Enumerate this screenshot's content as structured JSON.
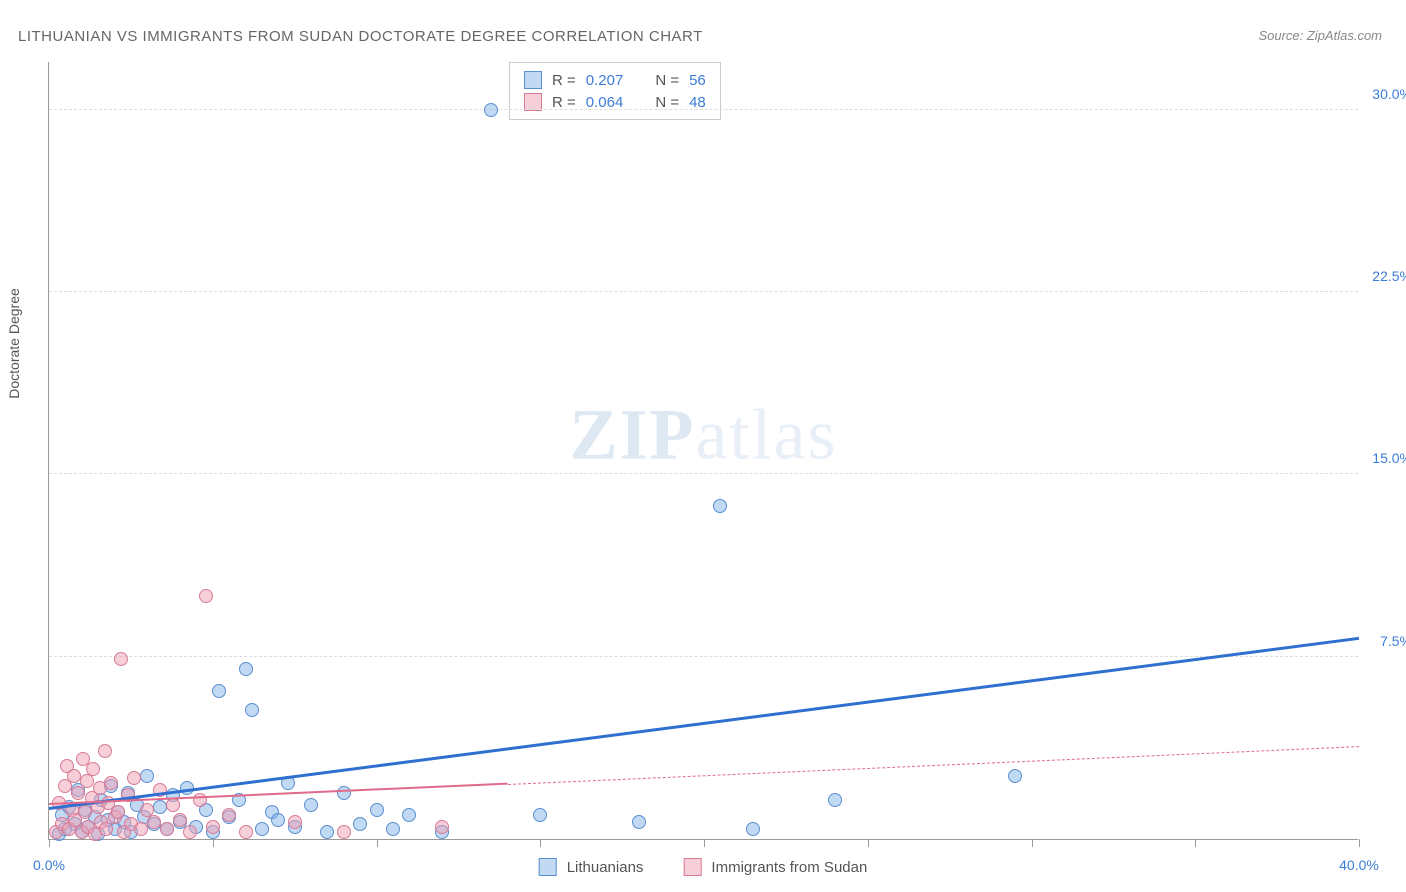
{
  "title": "LITHUANIAN VS IMMIGRANTS FROM SUDAN DOCTORATE DEGREE CORRELATION CHART",
  "source": "Source: ZipAtlas.com",
  "ylabel": "Doctorate Degree",
  "watermark_a": "ZIP",
  "watermark_b": "atlas",
  "chart": {
    "type": "scatter",
    "xlim": [
      0,
      40
    ],
    "ylim": [
      0,
      32
    ],
    "xtick_positions": [
      0,
      5,
      10,
      15,
      20,
      25,
      30,
      35,
      40
    ],
    "xtick_labels": {
      "0": "0.0%",
      "40": "40.0%"
    },
    "xtick_label_color": "#3b7dd8",
    "ytick_positions": [
      7.5,
      15.0,
      22.5,
      30.0
    ],
    "ytick_labels": [
      "7.5%",
      "15.0%",
      "22.5%",
      "30.0%"
    ],
    "ytick_label_color": "#3b7dd8",
    "grid_color": "#dddddd",
    "background_color": "#ffffff",
    "point_radius": 7,
    "series": [
      {
        "name": "Lithuanians",
        "fill": "rgba(120,170,230,0.45)",
        "stroke": "#5a8fd0",
        "trend_color": "#2e6fd0",
        "trend_width": 2.5,
        "R": 0.207,
        "N": 56,
        "trend": {
          "x1": 0,
          "y1": 1.2,
          "x2": 40,
          "y2": 8.2,
          "dash_from_x": null
        },
        "points": [
          [
            0.3,
            0.2
          ],
          [
            0.4,
            1.0
          ],
          [
            0.5,
            0.4
          ],
          [
            0.6,
            1.3
          ],
          [
            0.8,
            0.6
          ],
          [
            0.9,
            2.0
          ],
          [
            1.0,
            0.3
          ],
          [
            1.1,
            1.2
          ],
          [
            1.2,
            0.5
          ],
          [
            1.4,
            0.9
          ],
          [
            1.5,
            0.2
          ],
          [
            1.6,
            1.6
          ],
          [
            1.8,
            0.8
          ],
          [
            1.9,
            2.2
          ],
          [
            2.0,
            0.4
          ],
          [
            2.1,
            1.1
          ],
          [
            2.3,
            0.7
          ],
          [
            2.4,
            1.9
          ],
          [
            2.5,
            0.3
          ],
          [
            2.7,
            1.4
          ],
          [
            2.9,
            0.9
          ],
          [
            3.0,
            2.6
          ],
          [
            3.2,
            0.6
          ],
          [
            3.4,
            1.3
          ],
          [
            3.6,
            0.4
          ],
          [
            3.8,
            1.8
          ],
          [
            4.0,
            0.7
          ],
          [
            4.2,
            2.1
          ],
          [
            4.5,
            0.5
          ],
          [
            4.8,
            1.2
          ],
          [
            5.0,
            0.3
          ],
          [
            5.2,
            6.1
          ],
          [
            5.5,
            0.9
          ],
          [
            5.8,
            1.6
          ],
          [
            6.0,
            7.0
          ],
          [
            6.2,
            5.3
          ],
          [
            6.5,
            0.4
          ],
          [
            6.8,
            1.1
          ],
          [
            7.0,
            0.8
          ],
          [
            7.3,
            2.3
          ],
          [
            7.5,
            0.5
          ],
          [
            8.0,
            1.4
          ],
          [
            8.5,
            0.3
          ],
          [
            9.0,
            1.9
          ],
          [
            9.5,
            0.6
          ],
          [
            10.0,
            1.2
          ],
          [
            10.5,
            0.4
          ],
          [
            11.0,
            1.0
          ],
          [
            12.0,
            0.3
          ],
          [
            13.5,
            30.0
          ],
          [
            15.0,
            1.0
          ],
          [
            18.0,
            0.7
          ],
          [
            20.5,
            13.7
          ],
          [
            21.5,
            0.4
          ],
          [
            29.5,
            2.6
          ],
          [
            24.0,
            1.6
          ]
        ]
      },
      {
        "name": "Immigrants from Sudan",
        "fill": "rgba(240,160,180,0.5)",
        "stroke": "#d87a96",
        "trend_color": "#e06a8a",
        "trend_width": 2,
        "R": 0.064,
        "N": 48,
        "trend": {
          "x1": 0,
          "y1": 1.4,
          "x2": 40,
          "y2": 3.8,
          "dash_from_x": 14
        },
        "points": [
          [
            0.2,
            0.3
          ],
          [
            0.3,
            1.5
          ],
          [
            0.4,
            0.6
          ],
          [
            0.5,
            2.2
          ],
          [
            0.55,
            3.0
          ],
          [
            0.6,
            0.4
          ],
          [
            0.7,
            1.2
          ],
          [
            0.75,
            2.6
          ],
          [
            0.8,
            0.8
          ],
          [
            0.9,
            1.9
          ],
          [
            1.0,
            0.3
          ],
          [
            1.05,
            3.3
          ],
          [
            1.1,
            1.1
          ],
          [
            1.15,
            2.4
          ],
          [
            1.2,
            0.5
          ],
          [
            1.3,
            1.7
          ],
          [
            1.35,
            2.9
          ],
          [
            1.4,
            0.2
          ],
          [
            1.5,
            1.3
          ],
          [
            1.55,
            2.1
          ],
          [
            1.6,
            0.7
          ],
          [
            1.7,
            3.6
          ],
          [
            1.75,
            0.4
          ],
          [
            1.8,
            1.5
          ],
          [
            1.9,
            2.3
          ],
          [
            2.0,
            0.9
          ],
          [
            2.1,
            1.1
          ],
          [
            2.2,
            7.4
          ],
          [
            2.3,
            0.3
          ],
          [
            2.4,
            1.8
          ],
          [
            2.5,
            0.6
          ],
          [
            2.6,
            2.5
          ],
          [
            2.8,
            0.4
          ],
          [
            3.0,
            1.2
          ],
          [
            3.2,
            0.7
          ],
          [
            3.4,
            2.0
          ],
          [
            3.6,
            0.4
          ],
          [
            3.8,
            1.4
          ],
          [
            4.0,
            0.8
          ],
          [
            4.3,
            0.3
          ],
          [
            4.6,
            1.6
          ],
          [
            4.8,
            10.0
          ],
          [
            5.0,
            0.5
          ],
          [
            5.5,
            1.0
          ],
          [
            6.0,
            0.3
          ],
          [
            7.5,
            0.7
          ],
          [
            9.0,
            0.3
          ],
          [
            12.0,
            0.5
          ]
        ]
      }
    ]
  },
  "stats_box": {
    "rows": [
      {
        "swatch_fill": "rgba(120,170,230,0.45)",
        "swatch_stroke": "#5a8fd0",
        "r_label": "R =",
        "r_val": "0.207",
        "n_label": "N =",
        "n_val": "56",
        "val_color": "#3b7dd8"
      },
      {
        "swatch_fill": "rgba(240,160,180,0.5)",
        "swatch_stroke": "#d87a96",
        "r_label": "R =",
        "r_val": "0.064",
        "n_label": "N =",
        "n_val": "48",
        "val_color": "#3b7dd8"
      }
    ]
  },
  "legend": [
    {
      "swatch_fill": "rgba(120,170,230,0.45)",
      "swatch_stroke": "#5a8fd0",
      "label": "Lithuanians"
    },
    {
      "swatch_fill": "rgba(240,160,180,0.5)",
      "swatch_stroke": "#d87a96",
      "label": "Immigrants from Sudan"
    }
  ]
}
